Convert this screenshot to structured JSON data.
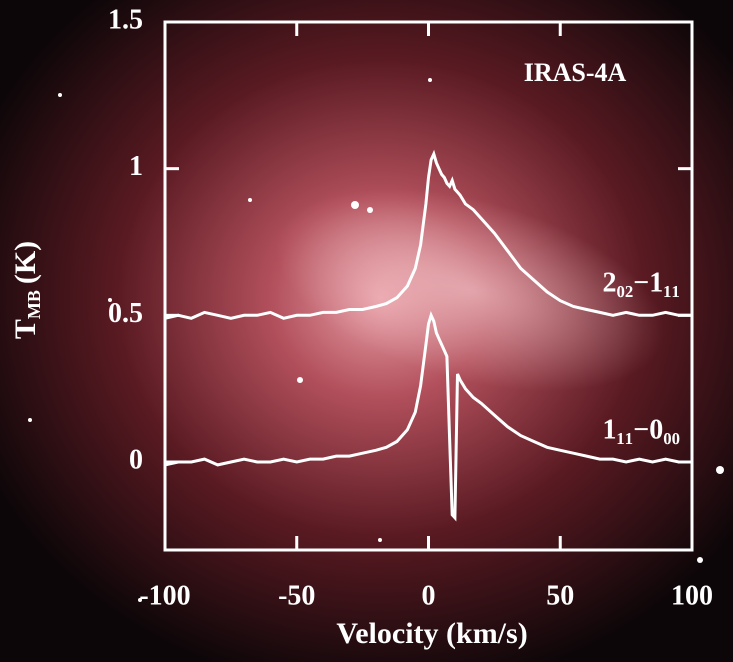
{
  "chart_data": {
    "type": "line",
    "annotation": "IRAS-4A",
    "x_label": "Velocity (km/s)",
    "y_label": {
      "main": "T",
      "sub": "MB",
      "unit": "(K)"
    },
    "x": [
      -100,
      -95,
      -90,
      -85,
      -80,
      -75,
      -70,
      -65,
      -60,
      -55,
      -50,
      -45,
      -40,
      -35,
      -30,
      -25,
      -20,
      -16,
      -12,
      -8,
      -5,
      -3,
      -1,
      0,
      1,
      2,
      3,
      4,
      5,
      6,
      7,
      8,
      9,
      10,
      11,
      12,
      14,
      17,
      20,
      25,
      30,
      35,
      40,
      45,
      50,
      55,
      60,
      65,
      70,
      75,
      80,
      85,
      90,
      95,
      100
    ],
    "series": [
      {
        "name": "2₀₂−1₁₁",
        "color": "#ffffff",
        "values": [
          0.49,
          0.5,
          0.49,
          0.51,
          0.5,
          0.49,
          0.5,
          0.5,
          0.51,
          0.49,
          0.5,
          0.5,
          0.51,
          0.51,
          0.52,
          0.52,
          0.53,
          0.54,
          0.56,
          0.6,
          0.66,
          0.74,
          0.88,
          0.97,
          1.03,
          1.05,
          1.02,
          1.0,
          0.98,
          0.97,
          0.95,
          0.94,
          0.96,
          0.93,
          0.92,
          0.91,
          0.88,
          0.86,
          0.83,
          0.78,
          0.72,
          0.66,
          0.62,
          0.58,
          0.55,
          0.53,
          0.52,
          0.51,
          0.5,
          0.51,
          0.5,
          0.5,
          0.51,
          0.5,
          0.5
        ]
      },
      {
        "name": "1₁₁−0₀₀",
        "color": "#ffffff",
        "values": [
          -0.01,
          0.0,
          0.0,
          0.01,
          -0.01,
          0.0,
          0.01,
          0.0,
          0.0,
          0.01,
          0.0,
          0.01,
          0.01,
          0.02,
          0.02,
          0.03,
          0.04,
          0.05,
          0.07,
          0.11,
          0.17,
          0.26,
          0.4,
          0.47,
          0.5,
          0.48,
          0.44,
          0.42,
          0.4,
          0.38,
          0.36,
          0.08,
          -0.18,
          -0.19,
          0.3,
          0.28,
          0.25,
          0.22,
          0.2,
          0.16,
          0.12,
          0.09,
          0.07,
          0.05,
          0.04,
          0.03,
          0.02,
          0.01,
          0.01,
          0.0,
          0.01,
          0.0,
          0.01,
          0.0,
          0.0
        ]
      }
    ],
    "xlim": [
      -100,
      100
    ],
    "xticks": [
      -100,
      -50,
      0,
      50,
      100
    ],
    "ylim": [
      -0.3,
      1.5
    ],
    "yticks": [
      0,
      0.5,
      1,
      1.5
    ],
    "grid": false
  }
}
